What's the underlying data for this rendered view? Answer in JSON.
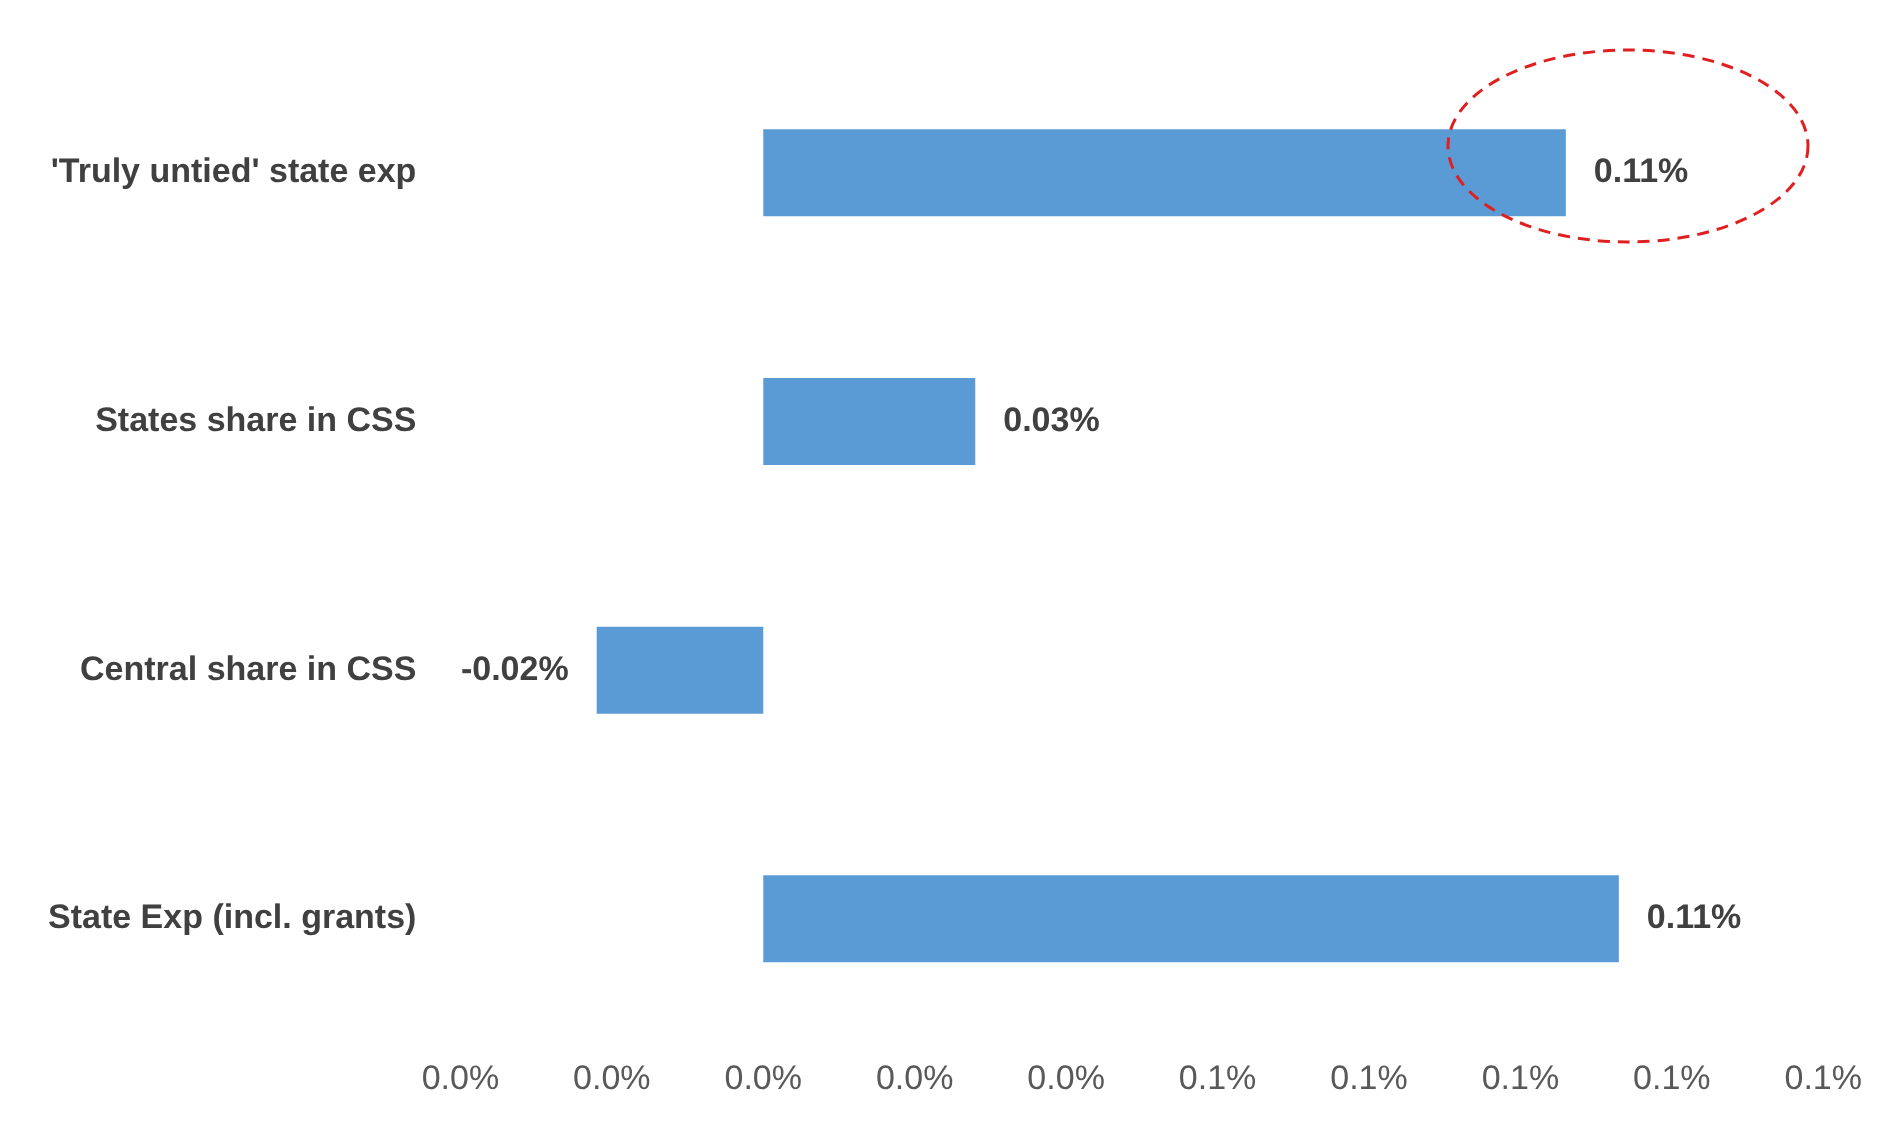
{
  "chart_data": {
    "type": "bar",
    "orientation": "horizontal",
    "categories": [
      "'Truly untied' state exp",
      "States share in CSS",
      "Central share in CSS",
      "State Exp (incl. grants)"
    ],
    "series": [
      {
        "color": "#5b9bd5",
        "values": [
          0.106,
          0.028,
          -0.022,
          0.113
        ],
        "value_labels": [
          "0.11%",
          "0.03%",
          "-0.02%",
          "0.11%"
        ]
      }
    ],
    "xlim": [
      -0.04,
      0.14
    ],
    "xticks": [
      {
        "value": -0.04,
        "label": "0.0%"
      },
      {
        "value": -0.02,
        "label": "0.0%"
      },
      {
        "value": 0,
        "label": "0.0%"
      },
      {
        "value": 0.02,
        "label": "0.0%"
      },
      {
        "value": 0.04,
        "label": "0.0%"
      },
      {
        "value": 0.06,
        "label": "0.1%"
      },
      {
        "value": 0.08,
        "label": "0.1%"
      },
      {
        "value": 0.1,
        "label": "0.1%"
      },
      {
        "value": 0.12,
        "label": "0.1%"
      },
      {
        "value": 0.14,
        "label": "0.1%"
      }
    ],
    "grid": false,
    "legend": false
  }
}
